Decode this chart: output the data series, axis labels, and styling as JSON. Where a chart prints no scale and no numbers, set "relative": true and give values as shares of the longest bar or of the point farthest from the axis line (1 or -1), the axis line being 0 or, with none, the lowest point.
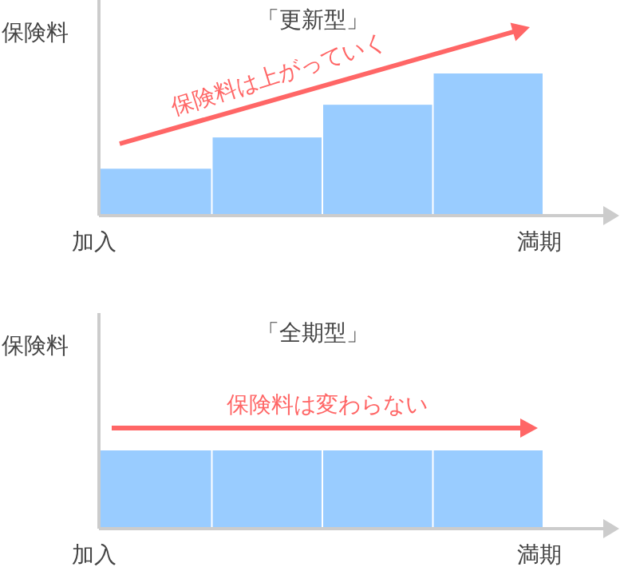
{
  "chart_data": [
    {
      "type": "bar",
      "title": "「更新型」",
      "ylabel": "保険料",
      "categories": [
        null,
        null,
        null,
        null
      ],
      "values": [
        0.33,
        0.55,
        0.78,
        1
      ],
      "color": "#99ccff",
      "relative": true,
      "annotations": [
        "保険料は上がっていく",
        "加入",
        "満期"
      ]
    },
    {
      "type": "bar",
      "title": "「全期型」",
      "ylabel": "保険料",
      "categories": [
        null,
        null,
        null,
        null
      ],
      "values": [
        1,
        1,
        1,
        1
      ],
      "color": "#99ccff",
      "relative": true,
      "annotations": [
        "保険料は変わらない",
        "加入",
        "満期"
      ]
    }
  ]
}
